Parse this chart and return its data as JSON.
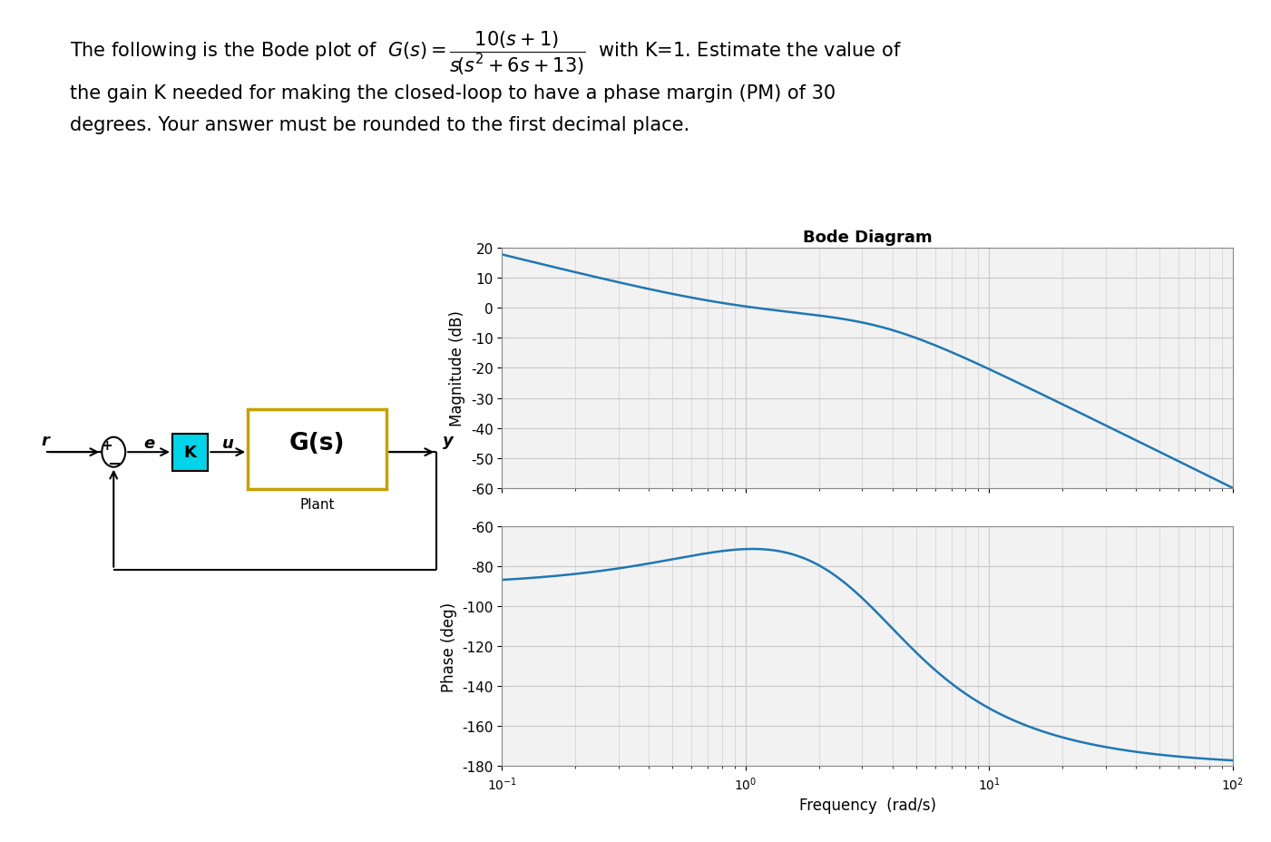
{
  "title_text": "Bode Diagram",
  "mag_ylabel": "Magnitude (dB)",
  "phase_ylabel": "Phase (deg)",
  "freq_xlabel": "Frequency  (rad/s)",
  "mag_ylim": [
    -60,
    20
  ],
  "mag_yticks": [
    20,
    10,
    0,
    -10,
    -20,
    -30,
    -40,
    -50,
    -60
  ],
  "phase_ylim": [
    -180,
    -60
  ],
  "phase_yticks": [
    -60,
    -80,
    -100,
    -120,
    -140,
    -160,
    -180
  ],
  "freq_range": [
    0.1,
    100
  ],
  "line_color": "#1f77b4",
  "line_width": 1.8,
  "grid_color": "#c8c8c8",
  "bg_color": "#ffffff",
  "plot_bg": "#f2f2f2",
  "K_box_color": "#00d4e8",
  "Gs_box_border": "#c8a000",
  "font_size_axis": 12,
  "font_size_title": 13,
  "font_size_tick": 11
}
